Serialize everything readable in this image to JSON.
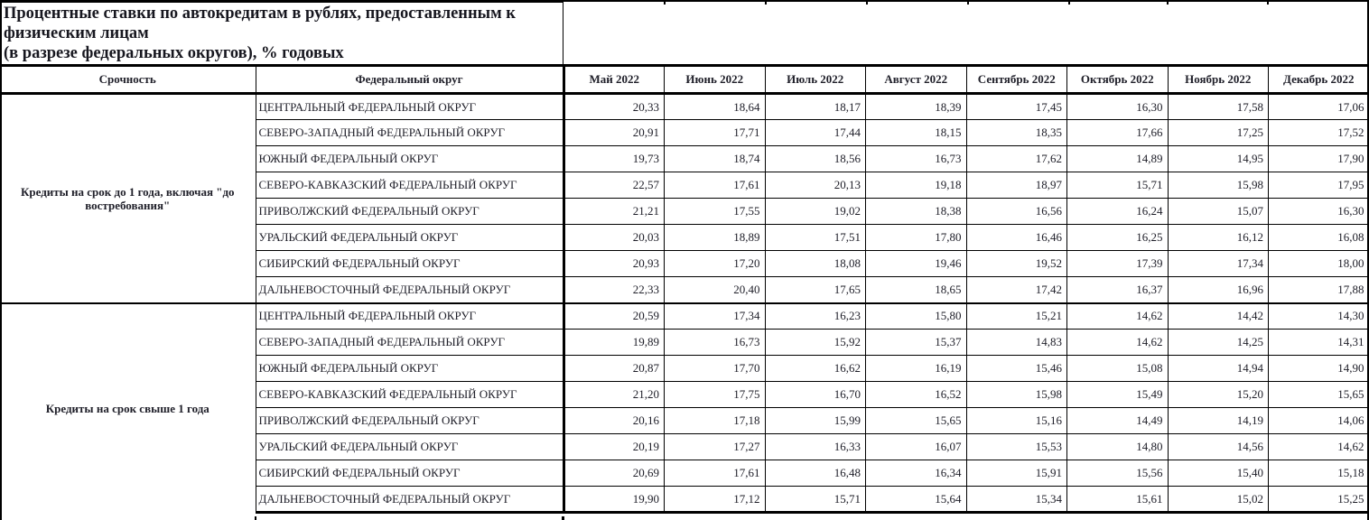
{
  "title": {
    "line1": "Процентные ставки по автокредитам в рублях, предоставленным к",
    "line2": "физическим лицам",
    "line3": "(в разрезе федеральных округов), % годовых"
  },
  "table": {
    "col_headers": {
      "term": "Срочность",
      "district": "Федеральный округ"
    },
    "months": [
      "Май 2022",
      "Июнь 2022",
      "Июль 2022",
      "Август 2022",
      "Сентябрь 2022",
      "Октябрь 2022",
      "Ноябрь 2022",
      "Декабрь 2022"
    ],
    "groups": [
      {
        "label": "Кредиты на срок до 1 года, включая \"до востребования\"",
        "rows": [
          {
            "district": "ЦЕНТРАЛЬНЫЙ ФЕДЕРАЛЬНЫЙ ОКРУГ",
            "values": [
              "20,33",
              "18,64",
              "18,17",
              "18,39",
              "17,45",
              "16,30",
              "17,58",
              "17,06"
            ]
          },
          {
            "district": "СЕВЕРО-ЗАПАДНЫЙ ФЕДЕРАЛЬНЫЙ ОКРУГ",
            "values": [
              "20,91",
              "17,71",
              "17,44",
              "18,15",
              "18,35",
              "17,66",
              "17,25",
              "17,52"
            ]
          },
          {
            "district": "ЮЖНЫЙ ФЕДЕРАЛЬНЫЙ ОКРУГ",
            "values": [
              "19,73",
              "18,74",
              "18,56",
              "16,73",
              "17,62",
              "14,89",
              "14,95",
              "17,90"
            ]
          },
          {
            "district": "СЕВЕРО-КАВКАЗСКИЙ ФЕДЕРАЛЬНЫЙ ОКРУГ",
            "values": [
              "22,57",
              "17,61",
              "20,13",
              "19,18",
              "18,97",
              "15,71",
              "15,98",
              "17,95"
            ]
          },
          {
            "district": "ПРИВОЛЖСКИЙ ФЕДЕРАЛЬНЫЙ ОКРУГ",
            "values": [
              "21,21",
              "17,55",
              "19,02",
              "18,38",
              "16,56",
              "16,24",
              "15,07",
              "16,30"
            ]
          },
          {
            "district": "УРАЛЬСКИЙ ФЕДЕРАЛЬНЫЙ ОКРУГ",
            "values": [
              "20,03",
              "18,89",
              "17,51",
              "17,80",
              "16,46",
              "16,25",
              "16,12",
              "16,08"
            ]
          },
          {
            "district": "СИБИРСКИЙ ФЕДЕРАЛЬНЫЙ ОКРУГ",
            "values": [
              "20,93",
              "17,20",
              "18,08",
              "19,46",
              "19,52",
              "17,39",
              "17,34",
              "18,00"
            ]
          },
          {
            "district": "ДАЛЬНЕВОСТОЧНЫЙ ФЕДЕРАЛЬНЫЙ ОКРУГ",
            "values": [
              "22,33",
              "20,40",
              "17,65",
              "18,65",
              "17,42",
              "16,37",
              "16,96",
              "17,88"
            ]
          }
        ]
      },
      {
        "label": "Кредиты на срок свыше 1 года",
        "rows": [
          {
            "district": "ЦЕНТРАЛЬНЫЙ ФЕДЕРАЛЬНЫЙ ОКРУГ",
            "values": [
              "20,59",
              "17,34",
              "16,23",
              "15,80",
              "15,21",
              "14,62",
              "14,42",
              "14,30"
            ]
          },
          {
            "district": "СЕВЕРО-ЗАПАДНЫЙ ФЕДЕРАЛЬНЫЙ ОКРУГ",
            "values": [
              "19,89",
              "16,73",
              "15,92",
              "15,37",
              "14,83",
              "14,62",
              "14,25",
              "14,31"
            ]
          },
          {
            "district": "ЮЖНЫЙ ФЕДЕРАЛЬНЫЙ ОКРУГ",
            "values": [
              "20,87",
              "17,70",
              "16,62",
              "16,19",
              "15,46",
              "15,08",
              "14,94",
              "14,90"
            ]
          },
          {
            "district": "СЕВЕРО-КАВКАЗСКИЙ ФЕДЕРАЛЬНЫЙ ОКРУГ",
            "values": [
              "21,20",
              "17,75",
              "16,70",
              "16,52",
              "15,98",
              "15,49",
              "15,20",
              "15,65"
            ]
          },
          {
            "district": "ПРИВОЛЖСКИЙ ФЕДЕРАЛЬНЫЙ ОКРУГ",
            "values": [
              "20,16",
              "17,18",
              "15,99",
              "15,65",
              "15,16",
              "14,49",
              "14,19",
              "14,06"
            ]
          },
          {
            "district": "УРАЛЬСКИЙ ФЕДЕРАЛЬНЫЙ ОКРУГ",
            "values": [
              "20,19",
              "17,27",
              "16,33",
              "16,07",
              "15,53",
              "14,80",
              "14,56",
              "14,62"
            ]
          },
          {
            "district": "СИБИРСКИЙ ФЕДЕРАЛЬНЫЙ ОКРУГ",
            "values": [
              "20,69",
              "17,61",
              "16,48",
              "16,34",
              "15,91",
              "15,56",
              "15,40",
              "15,18"
            ]
          },
          {
            "district": "ДАЛЬНЕВОСТОЧНЫЙ ФЕДЕРАЛЬНЫЙ ОКРУГ",
            "values": [
              "19,90",
              "17,12",
              "15,71",
              "15,64",
              "15,34",
              "15,61",
              "15,02",
              "15,25"
            ]
          }
        ]
      }
    ]
  },
  "colors": {
    "border": "#000000",
    "text": "#20202a",
    "background": "#ffffff"
  }
}
